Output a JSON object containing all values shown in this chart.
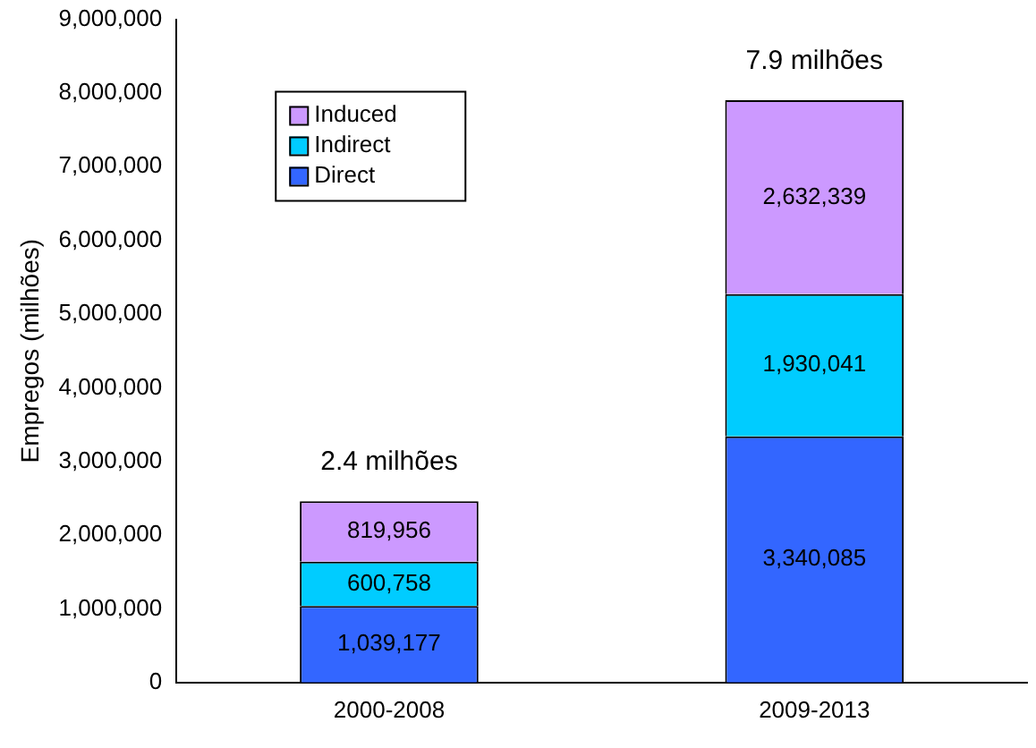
{
  "chart_data": {
    "type": "bar",
    "stacked": true,
    "ylabel": "Empregos (milhões)",
    "categories": [
      "2000-2008",
      "2009-2013"
    ],
    "series": [
      {
        "name": "Direct",
        "color": "#3366ff",
        "values": [
          1039177,
          3340085
        ],
        "value_labels": [
          "1,039,177",
          "3,340,085"
        ]
      },
      {
        "name": "Indirect",
        "color": "#00ccff",
        "values": [
          600758,
          1930041
        ],
        "value_labels": [
          "600,758",
          "1,930,041"
        ]
      },
      {
        "name": "Induced",
        "color": "#cc99ff",
        "values": [
          819956,
          2632339
        ],
        "value_labels": [
          "819,956",
          "2,632,339"
        ]
      }
    ],
    "annotations": [
      {
        "text": "2.4 milhões",
        "x": "2000-2008",
        "y": 2459891
      },
      {
        "text": "7.9 milhões",
        "x": "2009-2013",
        "y": 7902465
      }
    ],
    "ylim": [
      0,
      9000000
    ],
    "yticks": [
      {
        "value": 0,
        "label": "0"
      },
      {
        "value": 1000000,
        "label": "1,000,000"
      },
      {
        "value": 2000000,
        "label": "2,000,000"
      },
      {
        "value": 3000000,
        "label": "3,000,000"
      },
      {
        "value": 4000000,
        "label": "4,000,000"
      },
      {
        "value": 5000000,
        "label": "5,000,000"
      },
      {
        "value": 6000000,
        "label": "6,000,000"
      },
      {
        "value": 7000000,
        "label": "7,000,000"
      },
      {
        "value": 8000000,
        "label": "8,000,000"
      },
      {
        "value": 9000000,
        "label": "9,000,000"
      }
    ],
    "grid": false,
    "legend": "top left"
  }
}
